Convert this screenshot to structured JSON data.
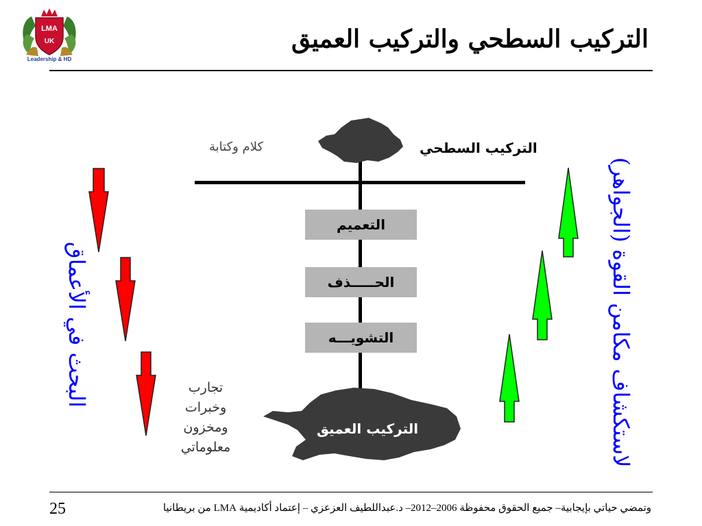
{
  "slide": {
    "title": "التركيب السطحي والتركيب العميق",
    "page_number": "25",
    "footer": "وتمضي حياتي بإيجابية– جميع الحقوق محفوظة 2006–2012– د.عبداللطيف العزعزي – إعتماد أكاديمية LMA من بريطانيا"
  },
  "logo": {
    "top_text": "LMA",
    "bottom_text": "UK",
    "caption": "Leadership & HD",
    "colors": {
      "shield": "#c8102e",
      "crown": "#c8102e",
      "leaves": "#3a7d2c"
    }
  },
  "diagram": {
    "surface_label": "التركيب السطحي",
    "surface_note": "كلام وكتابة",
    "stages": [
      "التعميم",
      "الحـــــذف",
      "التشويـــه"
    ],
    "deep_label": "التركيب العميق",
    "deep_note_lines": [
      "تجارب",
      "وخبرات",
      "ومخزون",
      "معلوماتي"
    ],
    "left_side_text": "البحث في الأعماق",
    "right_side_text": "لاستكشاف مكامن القوة (الجواهر)",
    "colors": {
      "down_arrows": "#ff0000",
      "up_arrows": "#00ff00",
      "blobs": "#3a3a3a",
      "stage_boxes": "#b5b5b5",
      "side_text": "#0000ff"
    }
  }
}
